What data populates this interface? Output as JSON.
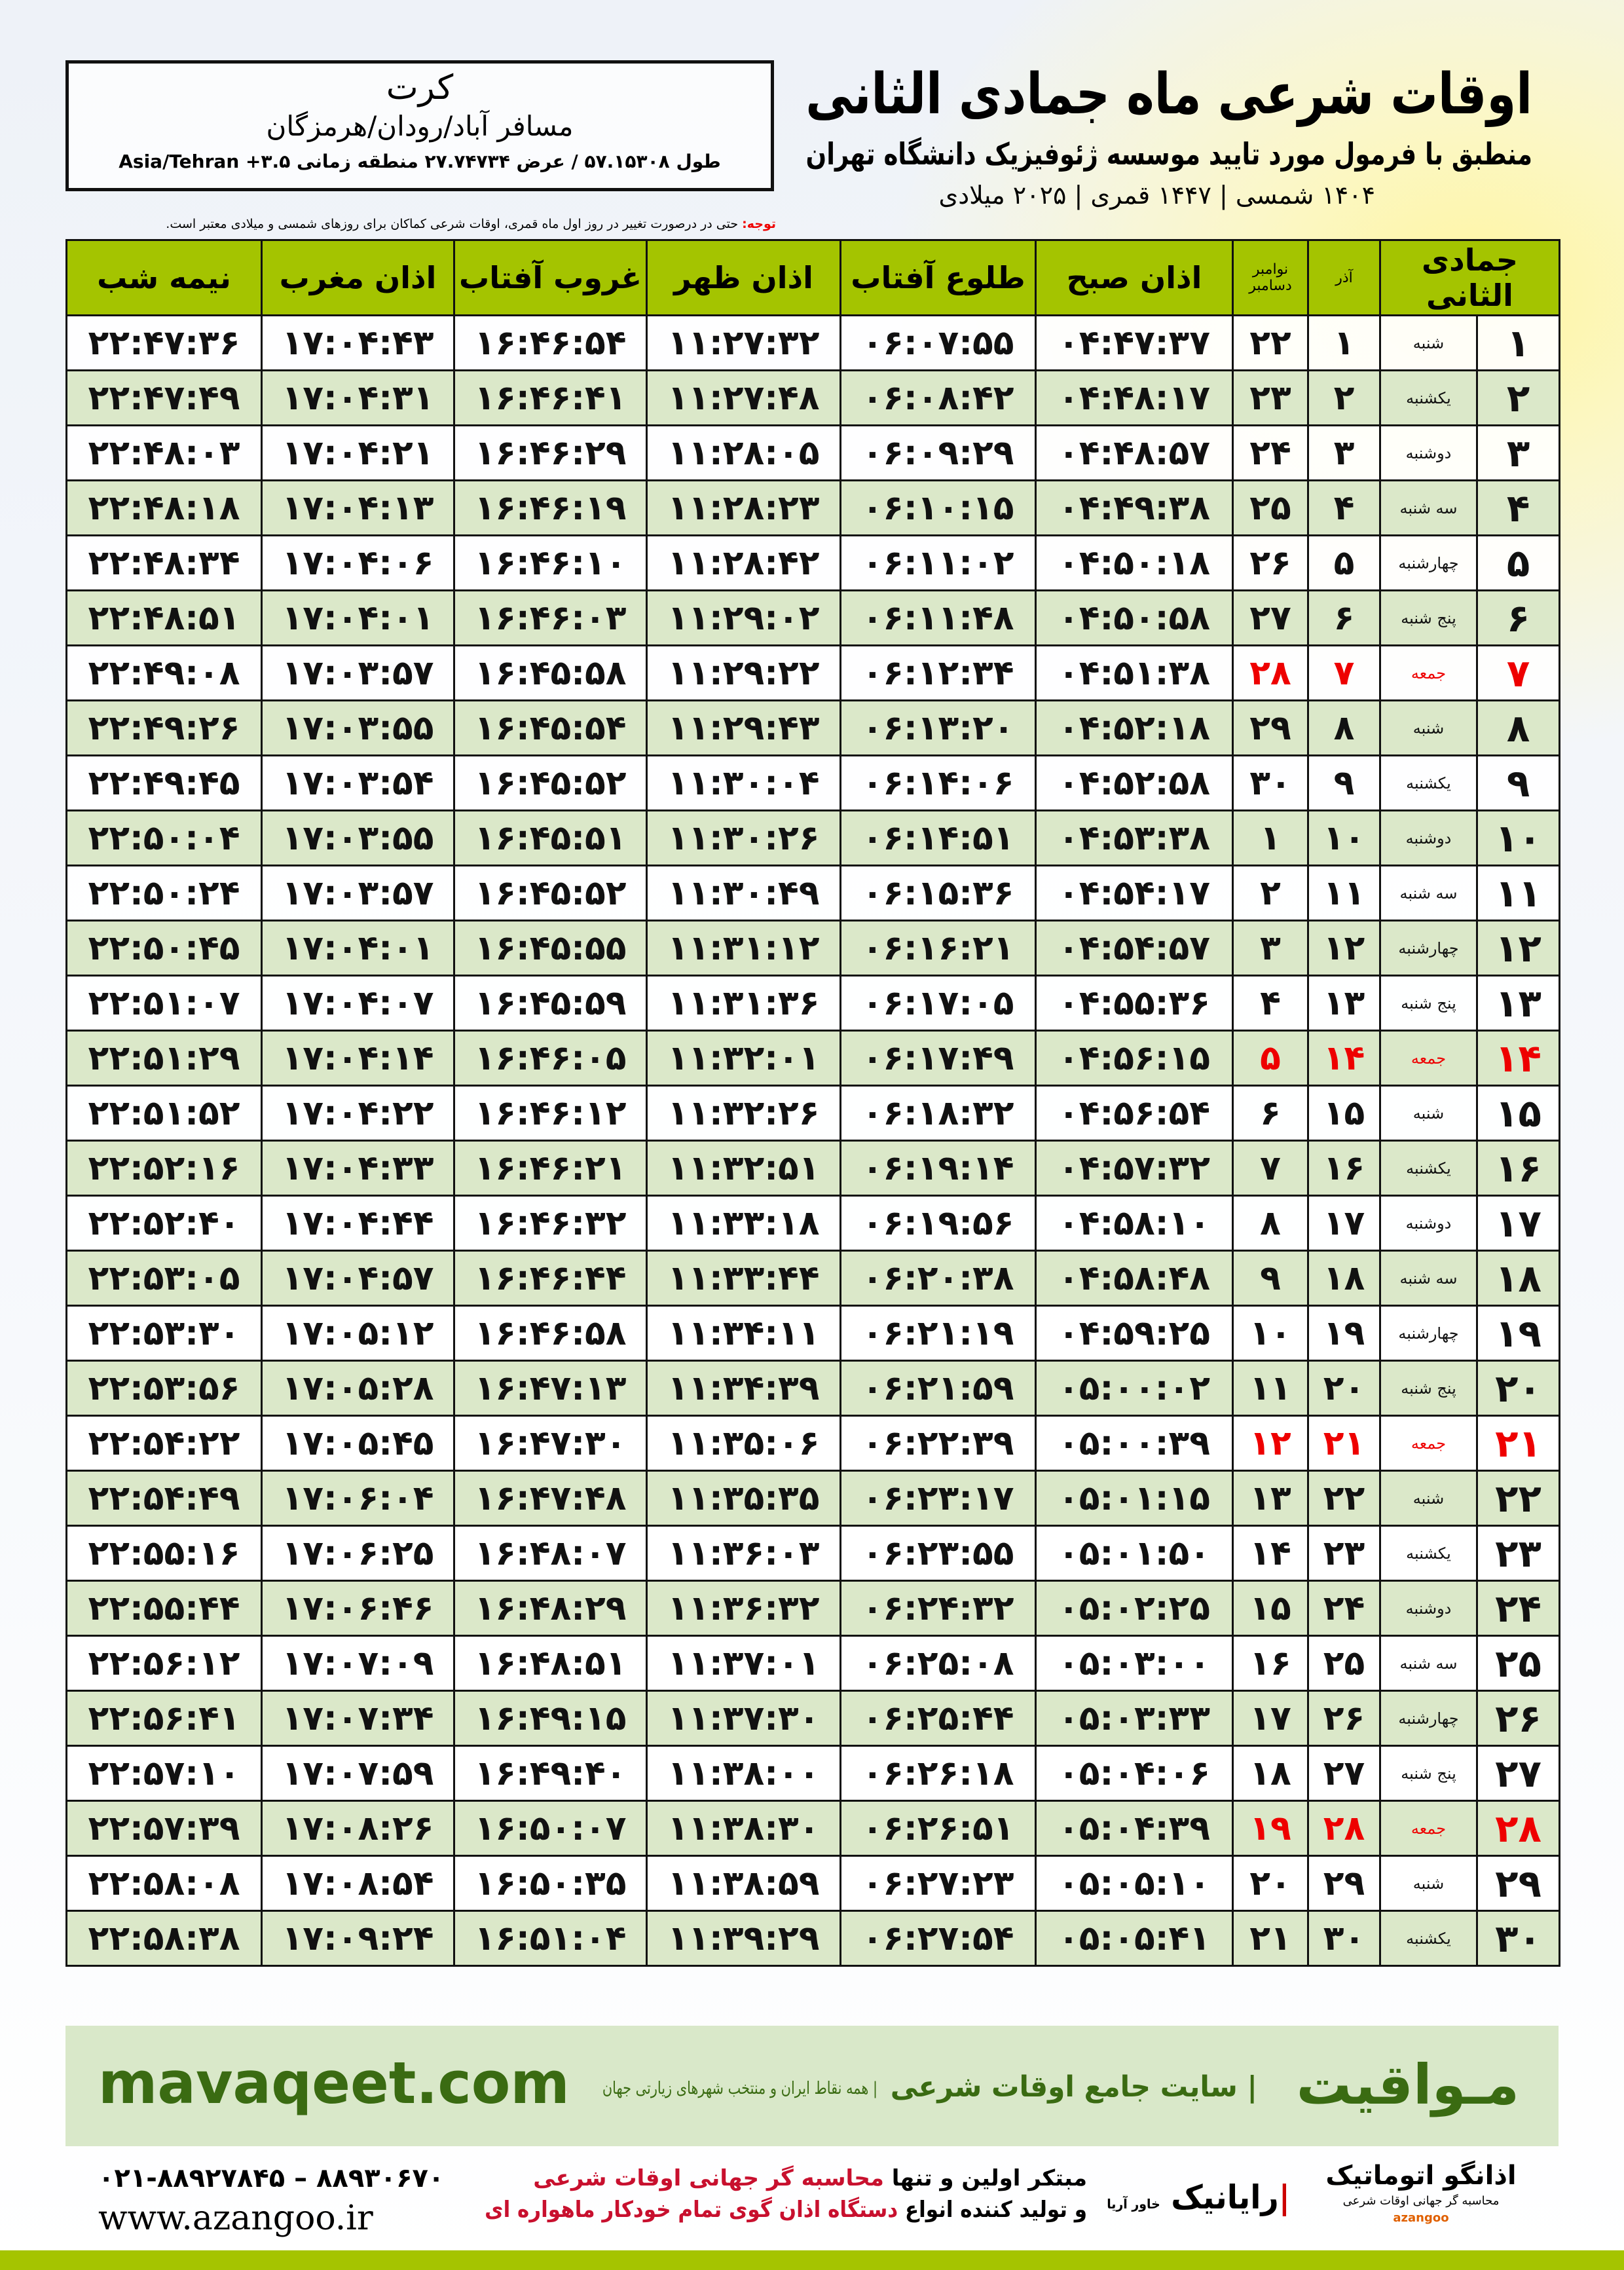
{
  "header": {
    "title": "اوقات شرعی ماه جمادی الثانی",
    "subtitle": "منطبق با فرمول مورد تایید موسسه ژئوفیزیک دانشگاه تهران",
    "dates": "۱۴۰۴ شمسی | ۱۴۴۷ قمری | ۲۰۲۵ میلادی"
  },
  "location": {
    "city": "کرت",
    "area": "مسافر آباد/رودان/هرمزگان",
    "coords": "طول ۵۷.۱۵۳۰۸ / عرض ۲۷.۷۴۷۳۴ منطقه زمانی ۳.۵+ Asia/Tehran"
  },
  "note": {
    "label": "توجه:",
    "text": "حتی در درصورت تغییر در روز اول ماه قمری، اوقات شرعی کماکان برای روزهای شمسی و میلادی معتبر است."
  },
  "table": {
    "headers": {
      "hijri": "جمادی الثانی",
      "azar": "آذر",
      "greg": "نوامبر دسامبر",
      "fajr": "اذان صبح",
      "sunrise": "طلوع آفتاب",
      "dhuhr": "اذان ظهر",
      "sunset": "غروب آفتاب",
      "maghrib": "اذان مغرب",
      "midnight": "نیمه شب"
    },
    "rows": [
      [
        "۱",
        "شنبه",
        "۱",
        "۲۲",
        "۰۴:۴۷:۳۷",
        "۰۶:۰۷:۵۵",
        "۱۱:۲۷:۳۲",
        "۱۶:۴۶:۵۴",
        "۱۷:۰۴:۴۳",
        "۲۲:۴۷:۳۶"
      ],
      [
        "۲",
        "یکشنبه",
        "۲",
        "۲۳",
        "۰۴:۴۸:۱۷",
        "۰۶:۰۸:۴۲",
        "۱۱:۲۷:۴۸",
        "۱۶:۴۶:۴۱",
        "۱۷:۰۴:۳۱",
        "۲۲:۴۷:۴۹"
      ],
      [
        "۳",
        "دوشنبه",
        "۳",
        "۲۴",
        "۰۴:۴۸:۵۷",
        "۰۶:۰۹:۲۹",
        "۱۱:۲۸:۰۵",
        "۱۶:۴۶:۲۹",
        "۱۷:۰۴:۲۱",
        "۲۲:۴۸:۰۳"
      ],
      [
        "۴",
        "سه شنبه",
        "۴",
        "۲۵",
        "۰۴:۴۹:۳۸",
        "۰۶:۱۰:۱۵",
        "۱۱:۲۸:۲۳",
        "۱۶:۴۶:۱۹",
        "۱۷:۰۴:۱۳",
        "۲۲:۴۸:۱۸"
      ],
      [
        "۵",
        "چهارشنبه",
        "۵",
        "۲۶",
        "۰۴:۵۰:۱۸",
        "۰۶:۱۱:۰۲",
        "۱۱:۲۸:۴۲",
        "۱۶:۴۶:۱۰",
        "۱۷:۰۴:۰۶",
        "۲۲:۴۸:۳۴"
      ],
      [
        "۶",
        "پنج شنبه",
        "۶",
        "۲۷",
        "۰۴:۵۰:۵۸",
        "۰۶:۱۱:۴۸",
        "۱۱:۲۹:۰۲",
        "۱۶:۴۶:۰۳",
        "۱۷:۰۴:۰۱",
        "۲۲:۴۸:۵۱"
      ],
      [
        "۷",
        "جمعه",
        "۷",
        "۲۸",
        "۰۴:۵۱:۳۸",
        "۰۶:۱۲:۳۴",
        "۱۱:۲۹:۲۲",
        "۱۶:۴۵:۵۸",
        "۱۷:۰۳:۵۷",
        "۲۲:۴۹:۰۸"
      ],
      [
        "۸",
        "شنبه",
        "۸",
        "۲۹",
        "۰۴:۵۲:۱۸",
        "۰۶:۱۳:۲۰",
        "۱۱:۲۹:۴۳",
        "۱۶:۴۵:۵۴",
        "۱۷:۰۳:۵۵",
        "۲۲:۴۹:۲۶"
      ],
      [
        "۹",
        "یکشنبه",
        "۹",
        "۳۰",
        "۰۴:۵۲:۵۸",
        "۰۶:۱۴:۰۶",
        "۱۱:۳۰:۰۴",
        "۱۶:۴۵:۵۲",
        "۱۷:۰۳:۵۴",
        "۲۲:۴۹:۴۵"
      ],
      [
        "۱۰",
        "دوشنبه",
        "۱۰",
        "۱",
        "۰۴:۵۳:۳۸",
        "۰۶:۱۴:۵۱",
        "۱۱:۳۰:۲۶",
        "۱۶:۴۵:۵۱",
        "۱۷:۰۳:۵۵",
        "۲۲:۵۰:۰۴"
      ],
      [
        "۱۱",
        "سه شنبه",
        "۱۱",
        "۲",
        "۰۴:۵۴:۱۷",
        "۰۶:۱۵:۳۶",
        "۱۱:۳۰:۴۹",
        "۱۶:۴۵:۵۲",
        "۱۷:۰۳:۵۷",
        "۲۲:۵۰:۲۴"
      ],
      [
        "۱۲",
        "چهارشنبه",
        "۱۲",
        "۳",
        "۰۴:۵۴:۵۷",
        "۰۶:۱۶:۲۱",
        "۱۱:۳۱:۱۲",
        "۱۶:۴۵:۵۵",
        "۱۷:۰۴:۰۱",
        "۲۲:۵۰:۴۵"
      ],
      [
        "۱۳",
        "پنج شنبه",
        "۱۳",
        "۴",
        "۰۴:۵۵:۳۶",
        "۰۶:۱۷:۰۵",
        "۱۱:۳۱:۳۶",
        "۱۶:۴۵:۵۹",
        "۱۷:۰۴:۰۷",
        "۲۲:۵۱:۰۷"
      ],
      [
        "۱۴",
        "جمعه",
        "۱۴",
        "۵",
        "۰۴:۵۶:۱۵",
        "۰۶:۱۷:۴۹",
        "۱۱:۳۲:۰۱",
        "۱۶:۴۶:۰۵",
        "۱۷:۰۴:۱۴",
        "۲۲:۵۱:۲۹"
      ],
      [
        "۱۵",
        "شنبه",
        "۱۵",
        "۶",
        "۰۴:۵۶:۵۴",
        "۰۶:۱۸:۳۲",
        "۱۱:۳۲:۲۶",
        "۱۶:۴۶:۱۲",
        "۱۷:۰۴:۲۲",
        "۲۲:۵۱:۵۲"
      ],
      [
        "۱۶",
        "یکشنبه",
        "۱۶",
        "۷",
        "۰۴:۵۷:۳۲",
        "۰۶:۱۹:۱۴",
        "۱۱:۳۲:۵۱",
        "۱۶:۴۶:۲۱",
        "۱۷:۰۴:۳۳",
        "۲۲:۵۲:۱۶"
      ],
      [
        "۱۷",
        "دوشنبه",
        "۱۷",
        "۸",
        "۰۴:۵۸:۱۰",
        "۰۶:۱۹:۵۶",
        "۱۱:۳۳:۱۸",
        "۱۶:۴۶:۳۲",
        "۱۷:۰۴:۴۴",
        "۲۲:۵۲:۴۰"
      ],
      [
        "۱۸",
        "سه شنبه",
        "۱۸",
        "۹",
        "۰۴:۵۸:۴۸",
        "۰۶:۲۰:۳۸",
        "۱۱:۳۳:۴۴",
        "۱۶:۴۶:۴۴",
        "۱۷:۰۴:۵۷",
        "۲۲:۵۳:۰۵"
      ],
      [
        "۱۹",
        "چهارشنبه",
        "۱۹",
        "۱۰",
        "۰۴:۵۹:۲۵",
        "۰۶:۲۱:۱۹",
        "۱۱:۳۴:۱۱",
        "۱۶:۴۶:۵۸",
        "۱۷:۰۵:۱۲",
        "۲۲:۵۳:۳۰"
      ],
      [
        "۲۰",
        "پنج شنبه",
        "۲۰",
        "۱۱",
        "۰۵:۰۰:۰۲",
        "۰۶:۲۱:۵۹",
        "۱۱:۳۴:۳۹",
        "۱۶:۴۷:۱۳",
        "۱۷:۰۵:۲۸",
        "۲۲:۵۳:۵۶"
      ],
      [
        "۲۱",
        "جمعه",
        "۲۱",
        "۱۲",
        "۰۵:۰۰:۳۹",
        "۰۶:۲۲:۳۹",
        "۱۱:۳۵:۰۶",
        "۱۶:۴۷:۳۰",
        "۱۷:۰۵:۴۵",
        "۲۲:۵۴:۲۲"
      ],
      [
        "۲۲",
        "شنبه",
        "۲۲",
        "۱۳",
        "۰۵:۰۱:۱۵",
        "۰۶:۲۳:۱۷",
        "۱۱:۳۵:۳۵",
        "۱۶:۴۷:۴۸",
        "۱۷:۰۶:۰۴",
        "۲۲:۵۴:۴۹"
      ],
      [
        "۲۳",
        "یکشنبه",
        "۲۳",
        "۱۴",
        "۰۵:۰۱:۵۰",
        "۰۶:۲۳:۵۵",
        "۱۱:۳۶:۰۳",
        "۱۶:۴۸:۰۷",
        "۱۷:۰۶:۲۵",
        "۲۲:۵۵:۱۶"
      ],
      [
        "۲۴",
        "دوشنبه",
        "۲۴",
        "۱۵",
        "۰۵:۰۲:۲۵",
        "۰۶:۲۴:۳۲",
        "۱۱:۳۶:۳۲",
        "۱۶:۴۸:۲۹",
        "۱۷:۰۶:۴۶",
        "۲۲:۵۵:۴۴"
      ],
      [
        "۲۵",
        "سه شنبه",
        "۲۵",
        "۱۶",
        "۰۵:۰۳:۰۰",
        "۰۶:۲۵:۰۸",
        "۱۱:۳۷:۰۱",
        "۱۶:۴۸:۵۱",
        "۱۷:۰۷:۰۹",
        "۲۲:۵۶:۱۲"
      ],
      [
        "۲۶",
        "چهارشنبه",
        "۲۶",
        "۱۷",
        "۰۵:۰۳:۳۳",
        "۰۶:۲۵:۴۴",
        "۱۱:۳۷:۳۰",
        "۱۶:۴۹:۱۵",
        "۱۷:۰۷:۳۴",
        "۲۲:۵۶:۴۱"
      ],
      [
        "۲۷",
        "پنج شنبه",
        "۲۷",
        "۱۸",
        "۰۵:۰۴:۰۶",
        "۰۶:۲۶:۱۸",
        "۱۱:۳۸:۰۰",
        "۱۶:۴۹:۴۰",
        "۱۷:۰۷:۵۹",
        "۲۲:۵۷:۱۰"
      ],
      [
        "۲۸",
        "جمعه",
        "۲۸",
        "۱۹",
        "۰۵:۰۴:۳۹",
        "۰۶:۲۶:۵۱",
        "۱۱:۳۸:۳۰",
        "۱۶:۵۰:۰۷",
        "۱۷:۰۸:۲۶",
        "۲۲:۵۷:۳۹"
      ],
      [
        "۲۹",
        "شنبه",
        "۲۹",
        "۲۰",
        "۰۵:۰۵:۱۰",
        "۰۶:۲۷:۲۳",
        "۱۱:۳۸:۵۹",
        "۱۶:۵۰:۳۵",
        "۱۷:۰۸:۵۴",
        "۲۲:۵۸:۰۸"
      ],
      [
        "۳۰",
        "یکشنبه",
        "۳۰",
        "۲۱",
        "۰۵:۰۵:۴۱",
        "۰۶:۲۷:۵۴",
        "۱۱:۳۹:۲۹",
        "۱۶:۵۱:۰۴",
        "۱۷:۰۹:۲۴",
        "۲۲:۵۸:۳۸"
      ]
    ],
    "friday_label": "جمعه",
    "friday_color": "#e00000"
  },
  "footer": {
    "brand": "مـواقیت",
    "slogan": "| سایت جامع اوقات شرعی",
    "slogan2": "| همه نقاط ایران و منتخب شهرهای زیارتی جهان",
    "site": "mavaqeet.com",
    "phone": "۰۲۱-۸۸۹۲۷۸۴۵ – ۸۸۹۳۰۶۷۰",
    "web": "www.azangoo.ir",
    "promo1_a": "مبتکر اولین و تنها ",
    "promo1_b": "محاسبه گر جهانی اوقات شرعی",
    "promo2_a": "و تولید کننده انواع ",
    "promo2_b": "دستگاه اذان گوی تمام خودکار ماهواره ای",
    "logo_rayanik": "رایانیک",
    "logo_rayanik_sub": "خاور آریا",
    "logo_azangoo": "اذانگو اتوماتیک",
    "logo_azangoo_sub": "محاسبه گر جهانی اوقات شرعی",
    "logo_azangoo_en": "azangoo",
    "accent": "#a5c400",
    "band_color": "#d9e8c9",
    "brand_color": "#3a6b12"
  }
}
